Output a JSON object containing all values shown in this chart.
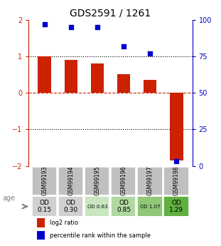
{
  "title": "GDS2591 / 1261",
  "samples": [
    "GSM99193",
    "GSM99194",
    "GSM99195",
    "GSM99196",
    "GSM99197",
    "GSM99198"
  ],
  "log2_ratio": [
    1.0,
    0.9,
    0.8,
    0.5,
    0.35,
    -1.85
  ],
  "percentile_rank": [
    97,
    95,
    95,
    82,
    77,
    3
  ],
  "ylim_left": [
    -2,
    2
  ],
  "ylim_right": [
    0,
    100
  ],
  "bar_color": "#cc2200",
  "dot_color": "#0000cc",
  "dotted_line_color": "#000000",
  "zero_line_color": "#cc2200",
  "yticks_left": [
    -2,
    -1,
    0,
    1,
    2
  ],
  "yticks_right": [
    0,
    25,
    50,
    75,
    100
  ],
  "age_label": "age",
  "od_labels": [
    "OD\n0.15",
    "OD\n0.30",
    "OD 0.63",
    "OD\n0.85",
    "OD 1.07",
    "OD\n1.29"
  ],
  "od_fontsize_large": [
    0,
    1,
    3,
    5
  ],
  "od_fontsize_small": [
    2,
    4
  ],
  "cell_colors": [
    "#d0d0d0",
    "#d0d0d0",
    "#c8e6c0",
    "#b0d8a0",
    "#90c878",
    "#60b040"
  ],
  "legend_bar_label": "log2 ratio",
  "legend_dot_label": "percentile rank within the sample"
}
